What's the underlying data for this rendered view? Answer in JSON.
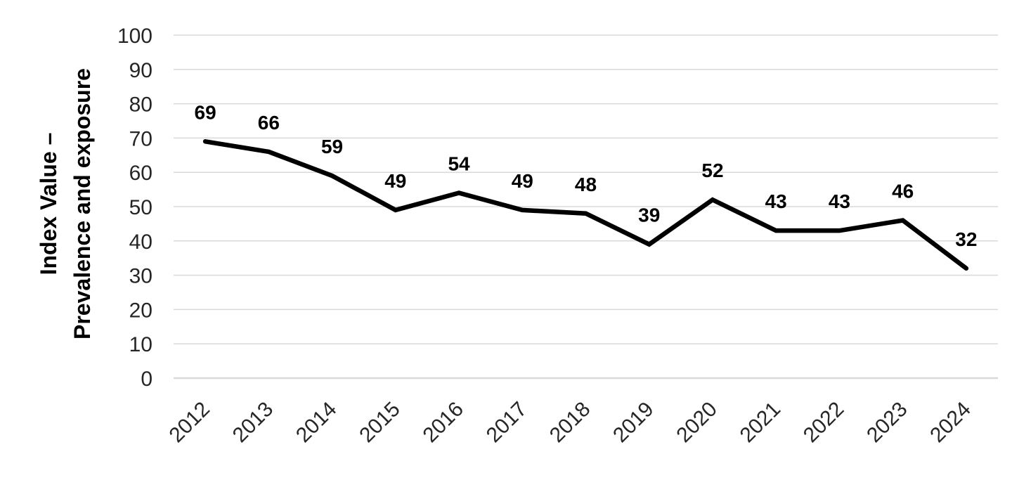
{
  "chart_data": {
    "type": "line",
    "title": "",
    "xlabel": "",
    "ylabel": "Index Value – Prevalence and exposure",
    "ylabel_line1": "Index Value –",
    "ylabel_line2": "Prevalence and exposure",
    "categories": [
      "2012",
      "2013",
      "2014",
      "2015",
      "2016",
      "2017",
      "2018",
      "2019",
      "2020",
      "2021",
      "2022",
      "2023",
      "2024"
    ],
    "series": [
      {
        "name": "Index Value – Prevalence and exposure",
        "values": [
          69,
          66,
          59,
          49,
          54,
          49,
          48,
          39,
          52,
          43,
          43,
          46,
          32
        ]
      }
    ],
    "data_labels_shown": true,
    "ylim": [
      0,
      100
    ],
    "yticks": [
      0,
      10,
      20,
      30,
      40,
      50,
      60,
      70,
      80,
      90,
      100
    ],
    "grid": "horizontal",
    "legend_position": "none",
    "colors": {
      "line": "#000000",
      "grid": "#d9d9d9",
      "axis_line": "#d9d9d9",
      "tick_label": "#262626",
      "data_label": "#000000"
    }
  }
}
